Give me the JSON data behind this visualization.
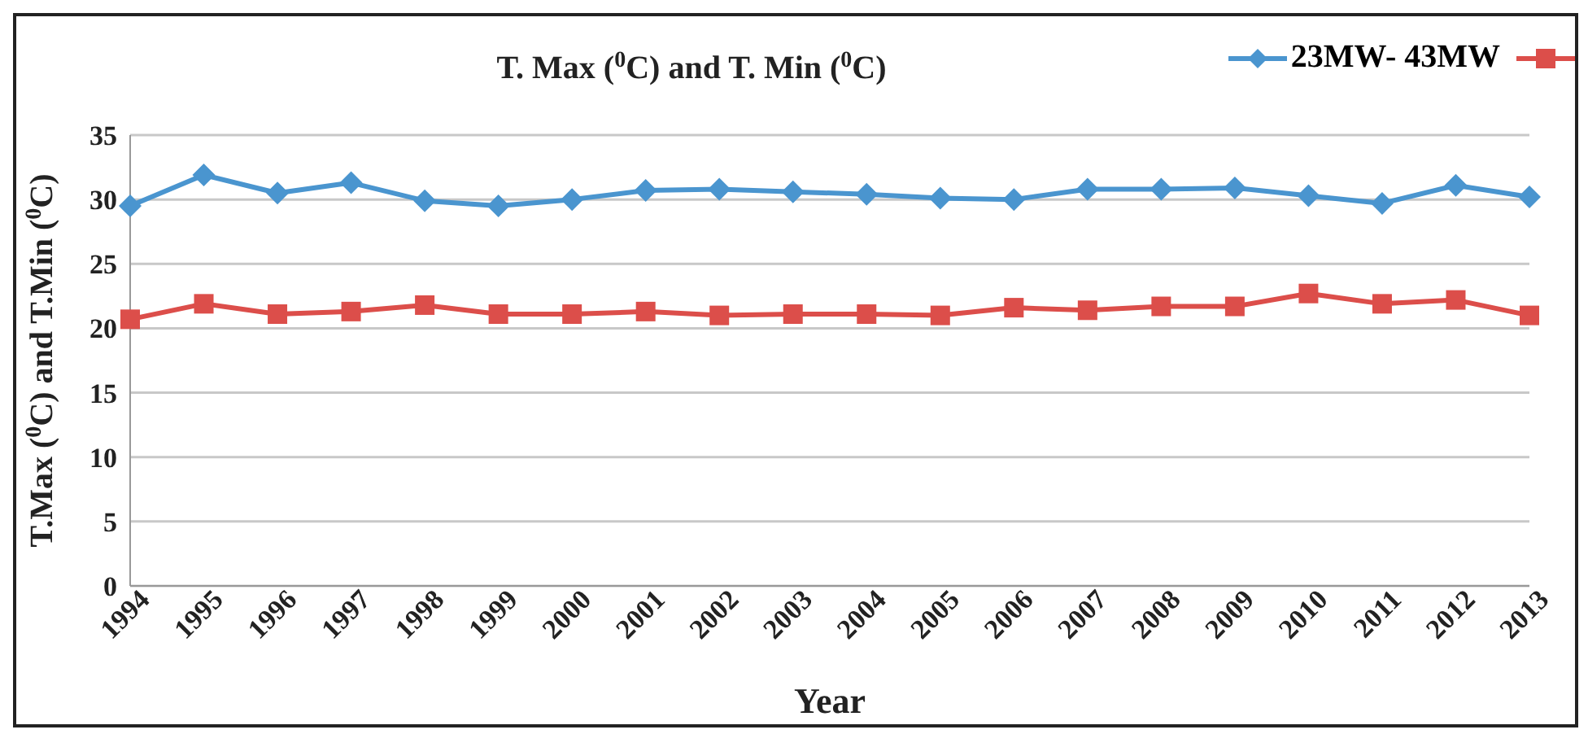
{
  "chart_data": {
    "type": "line",
    "title": "T. Max ($^{0}$C) and T. Min ($^{0}$C)",
    "xlabel": "Year",
    "ylabel": "T.Max ($^{0}$C) and T.Min ($^{0}$C)",
    "categories": [
      "1994",
      "1995",
      "1996",
      "1997",
      "1998",
      "1999",
      "2000",
      "2001",
      "2002",
      "2003",
      "2004",
      "2005",
      "2006",
      "2007",
      "2008",
      "2009",
      "2010",
      "2011",
      "2012",
      "2013"
    ],
    "series": [
      {
        "name": "23MW- 43MW",
        "color": "#4a95cf",
        "marker": "diamond",
        "values": [
          29.5,
          31.9,
          30.5,
          31.3,
          29.9,
          29.5,
          30.0,
          30.7,
          30.8,
          30.6,
          30.4,
          30.1,
          30.0,
          30.8,
          30.8,
          30.9,
          30.3,
          29.7,
          31.1,
          30.2
        ]
      },
      {
        "color": "#dc4e4a",
        "marker": "square",
        "values": [
          20.7,
          21.9,
          21.1,
          21.3,
          21.8,
          21.1,
          21.1,
          21.3,
          21.0,
          21.1,
          21.1,
          21.0,
          21.6,
          21.4,
          21.7,
          21.7,
          22.7,
          21.9,
          22.2,
          21.0
        ]
      }
    ],
    "ylim": [
      0,
      35
    ],
    "yticks": [
      0,
      5,
      10,
      15,
      20,
      25,
      30,
      35
    ],
    "grid": "y",
    "legend": "top right"
  }
}
